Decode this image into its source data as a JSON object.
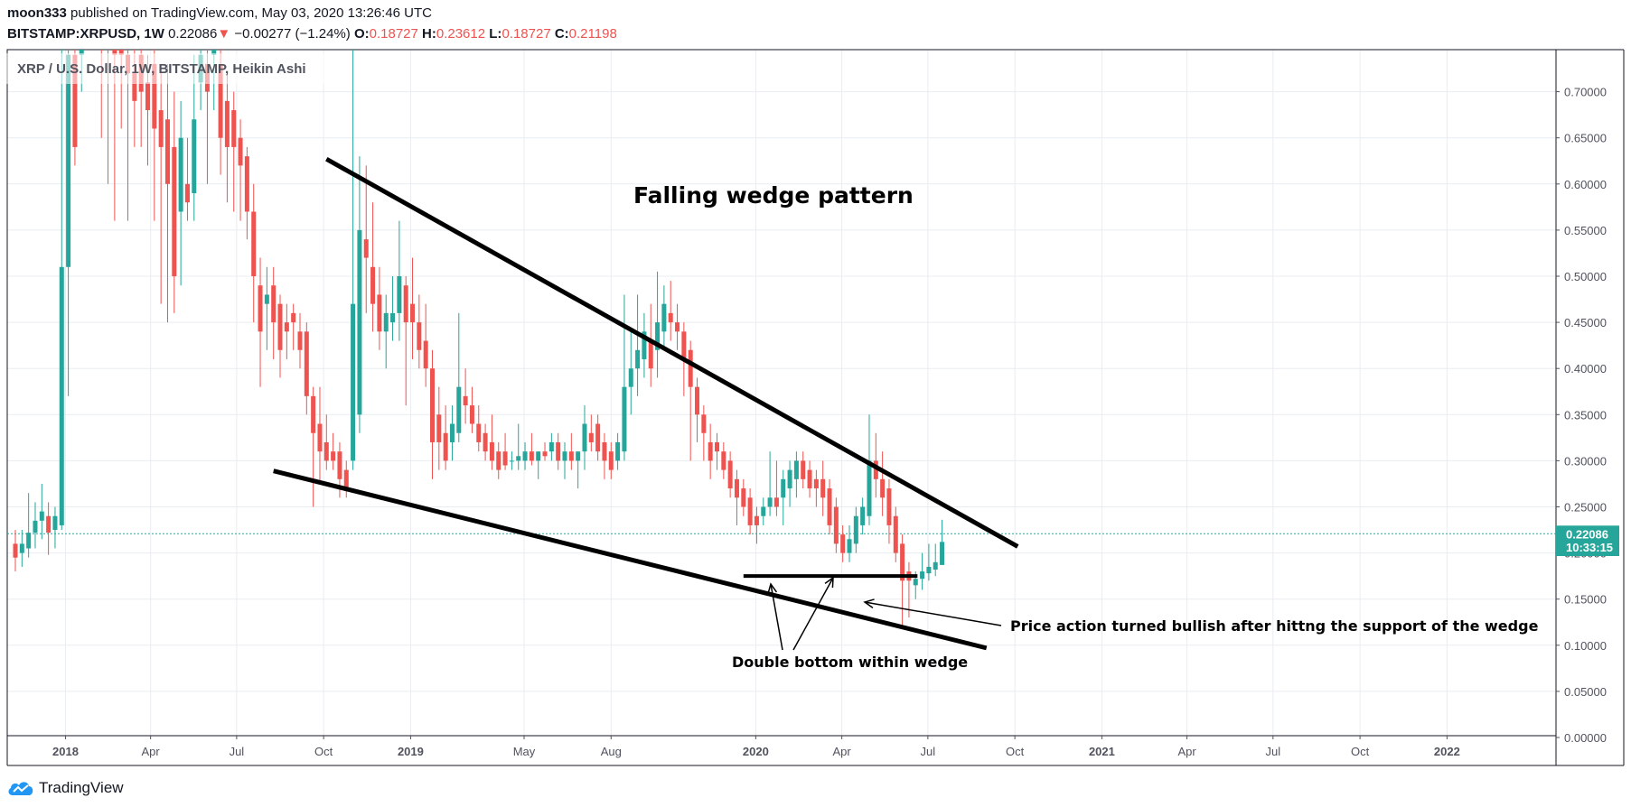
{
  "header": {
    "publisher_user": "moon333",
    "publisher_text": "published on TradingView.com, May 03, 2020 13:26:46 UTC",
    "symbol": "BITSTAMP:XRPUSD, 1W",
    "last": "0.22086",
    "change_arrow": "▼",
    "change": "−0.00277 (−1.24%)",
    "o_label": "O:",
    "o_value": "0.18727",
    "h_label": "H:",
    "h_value": "0.23612",
    "l_label": "L:",
    "l_value": "0.18727",
    "c_label": "C:",
    "c_value": "0.21198"
  },
  "legend_title": "XRP / U.S. Dollar, 1W, BITSTAMP, Heikin Ashi",
  "footer": {
    "brand": "TradingView",
    "brand_icon": "tradingview-cloud-icon"
  },
  "colors": {
    "up": "#26a69a",
    "down": "#ef5350",
    "grid": "#e8edf2",
    "text": "#131722",
    "axis_text": "#50535e",
    "line": "#000000"
  },
  "price_label": "0.22086",
  "countdown_label": "10:33:15",
  "chart_data": {
    "type": "candlestick",
    "title": "XRP / U.S. Dollar, 1W, BITSTAMP, Heikin Ashi",
    "ylim": [
      0,
      0.73
    ],
    "yticks": [
      "0.00000",
      "0.05000",
      "0.10000",
      "0.15000",
      "0.20000",
      "0.25000",
      "0.30000",
      "0.35000",
      "0.40000",
      "0.45000",
      "0.50000",
      "0.55000",
      "0.60000",
      "0.65000",
      "0.70000"
    ],
    "xticks": [
      {
        "label": "2018",
        "date": "2018-01-01",
        "bold": true
      },
      {
        "label": "Apr",
        "date": "2018-04-01"
      },
      {
        "label": "Jul",
        "date": "2018-07-01"
      },
      {
        "label": "Oct",
        "date": "2018-10-01"
      },
      {
        "label": "2019",
        "date": "2019-01-01",
        "bold": true
      },
      {
        "label": "May",
        "date": "2019-05-01"
      },
      {
        "label": "Aug",
        "date": "2019-08-01"
      },
      {
        "label": "2020",
        "date": "2020-01-01",
        "bold": true
      },
      {
        "label": "Apr",
        "date": "2020-04-01"
      },
      {
        "label": "Jul",
        "date": "2020-07-01"
      },
      {
        "label": "Oct",
        "date": "2020-10-01"
      },
      {
        "label": "2021",
        "date": "2021-01-01",
        "bold": true
      },
      {
        "label": "Apr",
        "date": "2021-04-01"
      },
      {
        "label": "Jul",
        "date": "2021-07-01"
      },
      {
        "label": "Oct",
        "date": "2021-10-01"
      },
      {
        "label": "2022",
        "date": "2022-01-01",
        "bold": true
      }
    ],
    "x_range": [
      "2017-11-09",
      "2022-03-20"
    ],
    "last_price": 0.22086,
    "candles": [
      {
        "d": "2017-11-09",
        "o": 0.21,
        "h": 0.225,
        "l": 0.18,
        "c": 0.195
      },
      {
        "d": "2017-11-16",
        "o": 0.2,
        "h": 0.225,
        "l": 0.185,
        "c": 0.21
      },
      {
        "d": "2017-11-23",
        "o": 0.205,
        "h": 0.265,
        "l": 0.195,
        "c": 0.222
      },
      {
        "d": "2017-11-30",
        "o": 0.222,
        "h": 0.255,
        "l": 0.205,
        "c": 0.235
      },
      {
        "d": "2017-12-07",
        "o": 0.235,
        "h": 0.275,
        "l": 0.215,
        "c": 0.245
      },
      {
        "d": "2017-12-14",
        "o": 0.24,
        "h": 0.255,
        "l": 0.198,
        "c": 0.222
      },
      {
        "d": "2017-12-21",
        "o": 0.225,
        "h": 0.25,
        "l": 0.205,
        "c": 0.24
      },
      {
        "d": "2017-12-28",
        "o": 0.23,
        "h": 0.76,
        "l": 0.225,
        "c": 0.51
      },
      {
        "d": "2018-01-04",
        "o": 0.51,
        "h": 0.76,
        "l": 0.37,
        "c": 0.74
      },
      {
        "d": "2018-01-11",
        "o": 0.74,
        "h": 0.8,
        "l": 0.62,
        "c": 0.64
      },
      {
        "d": "2018-01-18",
        "o": 0.74,
        "h": 0.78,
        "l": 0.7,
        "c": 0.76
      },
      {
        "d": "2018-02-08",
        "o": 0.78,
        "h": 0.8,
        "l": 0.65,
        "c": 0.76
      },
      {
        "d": "2018-02-15",
        "o": 0.77,
        "h": 0.8,
        "l": 0.6,
        "c": 0.76
      },
      {
        "d": "2018-02-22",
        "o": 0.76,
        "h": 0.79,
        "l": 0.56,
        "c": 0.74
      },
      {
        "d": "2018-03-01",
        "o": 0.76,
        "h": 0.78,
        "l": 0.66,
        "c": 0.74
      },
      {
        "d": "2018-03-08",
        "o": 0.74,
        "h": 0.77,
        "l": 0.56,
        "c": 0.72
      },
      {
        "d": "2018-03-15",
        "o": 0.72,
        "h": 0.76,
        "l": 0.64,
        "c": 0.69
      },
      {
        "d": "2018-03-22",
        "o": 0.74,
        "h": 0.76,
        "l": 0.64,
        "c": 0.7
      },
      {
        "d": "2018-03-29",
        "o": 0.71,
        "h": 0.74,
        "l": 0.62,
        "c": 0.68
      },
      {
        "d": "2018-04-05",
        "o": 0.73,
        "h": 0.76,
        "l": 0.56,
        "c": 0.66
      },
      {
        "d": "2018-04-12",
        "o": 0.68,
        "h": 0.72,
        "l": 0.47,
        "c": 0.64
      },
      {
        "d": "2018-04-19",
        "o": 0.67,
        "h": 0.73,
        "l": 0.45,
        "c": 0.6
      },
      {
        "d": "2018-04-26",
        "o": 0.64,
        "h": 0.7,
        "l": 0.46,
        "c": 0.5
      },
      {
        "d": "2018-05-03",
        "o": 0.57,
        "h": 0.69,
        "l": 0.49,
        "c": 0.65
      },
      {
        "d": "2018-05-10",
        "o": 0.6,
        "h": 0.65,
        "l": 0.56,
        "c": 0.58
      },
      {
        "d": "2018-05-17",
        "o": 0.59,
        "h": 0.74,
        "l": 0.56,
        "c": 0.67
      },
      {
        "d": "2018-05-24",
        "o": 0.71,
        "h": 0.76,
        "l": 0.68,
        "c": 0.74
      },
      {
        "d": "2018-05-31",
        "o": 0.73,
        "h": 0.76,
        "l": 0.6,
        "c": 0.7
      },
      {
        "d": "2018-06-07",
        "o": 0.74,
        "h": 0.77,
        "l": 0.68,
        "c": 0.75
      },
      {
        "d": "2018-06-14",
        "o": 0.73,
        "h": 0.76,
        "l": 0.61,
        "c": 0.65
      },
      {
        "d": "2018-06-21",
        "o": 0.69,
        "h": 0.72,
        "l": 0.58,
        "c": 0.64
      },
      {
        "d": "2018-06-28",
        "o": 0.68,
        "h": 0.7,
        "l": 0.57,
        "c": 0.64
      },
      {
        "d": "2018-07-05",
        "o": 0.65,
        "h": 0.67,
        "l": 0.56,
        "c": 0.62
      },
      {
        "d": "2018-07-12",
        "o": 0.63,
        "h": 0.64,
        "l": 0.54,
        "c": 0.57
      },
      {
        "d": "2018-07-19",
        "o": 0.57,
        "h": 0.6,
        "l": 0.45,
        "c": 0.5
      },
      {
        "d": "2018-07-26",
        "o": 0.49,
        "h": 0.52,
        "l": 0.38,
        "c": 0.44
      },
      {
        "d": "2018-08-02",
        "o": 0.47,
        "h": 0.51,
        "l": 0.42,
        "c": 0.48
      },
      {
        "d": "2018-08-09",
        "o": 0.49,
        "h": 0.51,
        "l": 0.41,
        "c": 0.45
      },
      {
        "d": "2018-08-16",
        "o": 0.47,
        "h": 0.48,
        "l": 0.39,
        "c": 0.42
      },
      {
        "d": "2018-08-23",
        "o": 0.45,
        "h": 0.47,
        "l": 0.41,
        "c": 0.44
      },
      {
        "d": "2018-08-30",
        "o": 0.46,
        "h": 0.47,
        "l": 0.42,
        "c": 0.45
      },
      {
        "d": "2018-09-06",
        "o": 0.44,
        "h": 0.46,
        "l": 0.4,
        "c": 0.42
      },
      {
        "d": "2018-09-13",
        "o": 0.44,
        "h": 0.45,
        "l": 0.35,
        "c": 0.37
      },
      {
        "d": "2018-09-20",
        "o": 0.37,
        "h": 0.38,
        "l": 0.25,
        "c": 0.33
      },
      {
        "d": "2018-09-27",
        "o": 0.34,
        "h": 0.38,
        "l": 0.275,
        "c": 0.31
      },
      {
        "d": "2018-10-04",
        "o": 0.32,
        "h": 0.35,
        "l": 0.29,
        "c": 0.3
      },
      {
        "d": "2018-10-11",
        "o": 0.31,
        "h": 0.33,
        "l": 0.29,
        "c": 0.3
      },
      {
        "d": "2018-10-18",
        "o": 0.31,
        "h": 0.32,
        "l": 0.26,
        "c": 0.28
      },
      {
        "d": "2018-10-25",
        "o": 0.29,
        "h": 0.3,
        "l": 0.26,
        "c": 0.27
      },
      {
        "d": "2018-11-01",
        "o": 0.3,
        "h": 0.78,
        "l": 0.29,
        "c": 0.47
      },
      {
        "d": "2018-11-08",
        "o": 0.35,
        "h": 0.63,
        "l": 0.33,
        "c": 0.55
      },
      {
        "d": "2018-11-15",
        "o": 0.54,
        "h": 0.62,
        "l": 0.46,
        "c": 0.52
      },
      {
        "d": "2018-11-22",
        "o": 0.51,
        "h": 0.58,
        "l": 0.44,
        "c": 0.47
      },
      {
        "d": "2018-11-29",
        "o": 0.48,
        "h": 0.51,
        "l": 0.42,
        "c": 0.44
      },
      {
        "d": "2018-12-06",
        "o": 0.44,
        "h": 0.48,
        "l": 0.4,
        "c": 0.46
      },
      {
        "d": "2018-12-13",
        "o": 0.45,
        "h": 0.5,
        "l": 0.43,
        "c": 0.46
      },
      {
        "d": "2018-12-20",
        "o": 0.46,
        "h": 0.56,
        "l": 0.43,
        "c": 0.5
      },
      {
        "d": "2018-12-27",
        "o": 0.49,
        "h": 0.5,
        "l": 0.36,
        "c": 0.45
      },
      {
        "d": "2019-01-03",
        "o": 0.47,
        "h": 0.52,
        "l": 0.41,
        "c": 0.45
      },
      {
        "d": "2019-01-10",
        "o": 0.45,
        "h": 0.48,
        "l": 0.4,
        "c": 0.42
      },
      {
        "d": "2019-01-17",
        "o": 0.43,
        "h": 0.47,
        "l": 0.38,
        "c": 0.4
      },
      {
        "d": "2019-01-24",
        "o": 0.4,
        "h": 0.42,
        "l": 0.28,
        "c": 0.32
      },
      {
        "d": "2019-01-31",
        "o": 0.35,
        "h": 0.38,
        "l": 0.29,
        "c": 0.32
      },
      {
        "d": "2019-02-07",
        "o": 0.33,
        "h": 0.36,
        "l": 0.29,
        "c": 0.3
      },
      {
        "d": "2019-02-14",
        "o": 0.32,
        "h": 0.36,
        "l": 0.3,
        "c": 0.34
      },
      {
        "d": "2019-02-21",
        "o": 0.33,
        "h": 0.46,
        "l": 0.32,
        "c": 0.38
      },
      {
        "d": "2019-02-28",
        "o": 0.37,
        "h": 0.4,
        "l": 0.34,
        "c": 0.36
      },
      {
        "d": "2019-03-07",
        "o": 0.36,
        "h": 0.38,
        "l": 0.33,
        "c": 0.34
      },
      {
        "d": "2019-03-14",
        "o": 0.34,
        "h": 0.36,
        "l": 0.31,
        "c": 0.32
      },
      {
        "d": "2019-03-21",
        "o": 0.33,
        "h": 0.34,
        "l": 0.3,
        "c": 0.31
      },
      {
        "d": "2019-03-28",
        "o": 0.32,
        "h": 0.35,
        "l": 0.29,
        "c": 0.3
      },
      {
        "d": "2019-04-04",
        "o": 0.31,
        "h": 0.32,
        "l": 0.28,
        "c": 0.29
      },
      {
        "d": "2019-04-11",
        "o": 0.31,
        "h": 0.33,
        "l": 0.29,
        "c": 0.295
      },
      {
        "d": "2019-04-18",
        "o": 0.3,
        "h": 0.31,
        "l": 0.29,
        "c": 0.3
      },
      {
        "d": "2019-04-25",
        "o": 0.3,
        "h": 0.34,
        "l": 0.29,
        "c": 0.305
      },
      {
        "d": "2019-05-02",
        "o": 0.3,
        "h": 0.32,
        "l": 0.29,
        "c": 0.31
      },
      {
        "d": "2019-05-09",
        "o": 0.31,
        "h": 0.33,
        "l": 0.295,
        "c": 0.3
      },
      {
        "d": "2019-05-16",
        "o": 0.3,
        "h": 0.31,
        "l": 0.28,
        "c": 0.31
      },
      {
        "d": "2019-05-23",
        "o": 0.31,
        "h": 0.32,
        "l": 0.3,
        "c": 0.305
      },
      {
        "d": "2019-05-30",
        "o": 0.31,
        "h": 0.33,
        "l": 0.3,
        "c": 0.32
      },
      {
        "d": "2019-06-06",
        "o": 0.32,
        "h": 0.33,
        "l": 0.29,
        "c": 0.3
      },
      {
        "d": "2019-06-13",
        "o": 0.3,
        "h": 0.32,
        "l": 0.28,
        "c": 0.31
      },
      {
        "d": "2019-06-20",
        "o": 0.31,
        "h": 0.33,
        "l": 0.29,
        "c": 0.3
      },
      {
        "d": "2019-06-27",
        "o": 0.3,
        "h": 0.31,
        "l": 0.27,
        "c": 0.31
      },
      {
        "d": "2019-07-04",
        "o": 0.31,
        "h": 0.36,
        "l": 0.29,
        "c": 0.34
      },
      {
        "d": "2019-07-11",
        "o": 0.33,
        "h": 0.35,
        "l": 0.31,
        "c": 0.32
      },
      {
        "d": "2019-07-18",
        "o": 0.34,
        "h": 0.35,
        "l": 0.3,
        "c": 0.31
      },
      {
        "d": "2019-07-25",
        "o": 0.32,
        "h": 0.33,
        "l": 0.28,
        "c": 0.3
      },
      {
        "d": "2019-08-01",
        "o": 0.31,
        "h": 0.32,
        "l": 0.28,
        "c": 0.29
      },
      {
        "d": "2019-08-08",
        "o": 0.3,
        "h": 0.33,
        "l": 0.29,
        "c": 0.32
      },
      {
        "d": "2019-08-15",
        "o": 0.31,
        "h": 0.48,
        "l": 0.3,
        "c": 0.38
      },
      {
        "d": "2019-08-22",
        "o": 0.38,
        "h": 0.44,
        "l": 0.35,
        "c": 0.4
      },
      {
        "d": "2019-08-29",
        "o": 0.4,
        "h": 0.48,
        "l": 0.37,
        "c": 0.42
      },
      {
        "d": "2019-09-05",
        "o": 0.41,
        "h": 0.46,
        "l": 0.39,
        "c": 0.44
      },
      {
        "d": "2019-09-12",
        "o": 0.43,
        "h": 0.47,
        "l": 0.38,
        "c": 0.4
      },
      {
        "d": "2019-09-19",
        "o": 0.42,
        "h": 0.505,
        "l": 0.39,
        "c": 0.45
      },
      {
        "d": "2019-09-26",
        "o": 0.44,
        "h": 0.49,
        "l": 0.42,
        "c": 0.47
      },
      {
        "d": "2019-10-03",
        "o": 0.46,
        "h": 0.495,
        "l": 0.43,
        "c": 0.45
      },
      {
        "d": "2019-10-10",
        "o": 0.45,
        "h": 0.47,
        "l": 0.42,
        "c": 0.44
      },
      {
        "d": "2019-10-17",
        "o": 0.44,
        "h": 0.45,
        "l": 0.37,
        "c": 0.41
      },
      {
        "d": "2019-10-24",
        "o": 0.42,
        "h": 0.43,
        "l": 0.3,
        "c": 0.38
      },
      {
        "d": "2019-10-31",
        "o": 0.38,
        "h": 0.39,
        "l": 0.32,
        "c": 0.35
      },
      {
        "d": "2019-11-07",
        "o": 0.35,
        "h": 0.36,
        "l": 0.3,
        "c": 0.33
      },
      {
        "d": "2019-11-14",
        "o": 0.32,
        "h": 0.34,
        "l": 0.28,
        "c": 0.3
      },
      {
        "d": "2019-11-21",
        "o": 0.32,
        "h": 0.33,
        "l": 0.29,
        "c": 0.31
      },
      {
        "d": "2019-11-28",
        "o": 0.31,
        "h": 0.32,
        "l": 0.28,
        "c": 0.29
      },
      {
        "d": "2019-12-05",
        "o": 0.3,
        "h": 0.31,
        "l": 0.26,
        "c": 0.27
      },
      {
        "d": "2019-12-12",
        "o": 0.28,
        "h": 0.29,
        "l": 0.23,
        "c": 0.26
      },
      {
        "d": "2019-12-19",
        "o": 0.27,
        "h": 0.28,
        "l": 0.24,
        "c": 0.25
      },
      {
        "d": "2019-12-26",
        "o": 0.26,
        "h": 0.27,
        "l": 0.22,
        "c": 0.23
      },
      {
        "d": "2020-01-02",
        "o": 0.24,
        "h": 0.25,
        "l": 0.21,
        "c": 0.23
      },
      {
        "d": "2020-01-09",
        "o": 0.24,
        "h": 0.26,
        "l": 0.23,
        "c": 0.25
      },
      {
        "d": "2020-01-16",
        "o": 0.25,
        "h": 0.31,
        "l": 0.24,
        "c": 0.26
      },
      {
        "d": "2020-01-23",
        "o": 0.26,
        "h": 0.3,
        "l": 0.24,
        "c": 0.25
      },
      {
        "d": "2020-01-30",
        "o": 0.26,
        "h": 0.29,
        "l": 0.23,
        "c": 0.28
      },
      {
        "d": "2020-02-06",
        "o": 0.27,
        "h": 0.3,
        "l": 0.25,
        "c": 0.29
      },
      {
        "d": "2020-02-13",
        "o": 0.28,
        "h": 0.31,
        "l": 0.26,
        "c": 0.3
      },
      {
        "d": "2020-02-20",
        "o": 0.3,
        "h": 0.31,
        "l": 0.27,
        "c": 0.28
      },
      {
        "d": "2020-02-27",
        "o": 0.29,
        "h": 0.3,
        "l": 0.26,
        "c": 0.27
      },
      {
        "d": "2020-03-05",
        "o": 0.28,
        "h": 0.29,
        "l": 0.25,
        "c": 0.27
      },
      {
        "d": "2020-03-12",
        "o": 0.28,
        "h": 0.3,
        "l": 0.24,
        "c": 0.26
      },
      {
        "d": "2020-03-19",
        "o": 0.27,
        "h": 0.28,
        "l": 0.22,
        "c": 0.23
      },
      {
        "d": "2020-03-26",
        "o": 0.25,
        "h": 0.26,
        "l": 0.2,
        "c": 0.21
      },
      {
        "d": "2020-04-02",
        "o": 0.22,
        "h": 0.23,
        "l": 0.19,
        "c": 0.2
      },
      {
        "d": "2020-04-09",
        "o": 0.2,
        "h": 0.23,
        "l": 0.19,
        "c": 0.215
      },
      {
        "d": "2020-04-16",
        "o": 0.21,
        "h": 0.25,
        "l": 0.2,
        "c": 0.24
      },
      {
        "d": "2020-04-23",
        "o": 0.23,
        "h": 0.26,
        "l": 0.22,
        "c": 0.25
      },
      {
        "d": "2020-04-30",
        "o": 0.24,
        "h": 0.35,
        "l": 0.23,
        "c": 0.3
      },
      {
        "d": "2020-05-07",
        "o": 0.3,
        "h": 0.33,
        "l": 0.26,
        "c": 0.28
      },
      {
        "d": "2020-05-14",
        "o": 0.28,
        "h": 0.31,
        "l": 0.24,
        "c": 0.26
      },
      {
        "d": "2020-05-21",
        "o": 0.27,
        "h": 0.28,
        "l": 0.21,
        "c": 0.23
      },
      {
        "d": "2020-05-28",
        "o": 0.24,
        "h": 0.25,
        "l": 0.19,
        "c": 0.2
      },
      {
        "d": "2020-06-04",
        "o": 0.21,
        "h": 0.22,
        "l": 0.12,
        "c": 0.17
      },
      {
        "d": "2020-06-11",
        "o": 0.18,
        "h": 0.19,
        "l": 0.13,
        "c": 0.17
      },
      {
        "d": "2020-06-18",
        "o": 0.165,
        "h": 0.18,
        "l": 0.15,
        "c": 0.172
      },
      {
        "d": "2020-06-25",
        "o": 0.172,
        "h": 0.2,
        "l": 0.16,
        "c": 0.18
      },
      {
        "d": "2020-07-02",
        "o": 0.178,
        "h": 0.21,
        "l": 0.17,
        "c": 0.185
      },
      {
        "d": "2020-07-09",
        "o": 0.182,
        "h": 0.21,
        "l": 0.175,
        "c": 0.19
      },
      {
        "d": "2020-07-16",
        "o": 0.187,
        "h": 0.236,
        "l": 0.187,
        "c": 0.212
      }
    ]
  },
  "annotations": {
    "title": "Falling wedge pattern",
    "double_bottom": "Double bottom within wedge",
    "bullish": "Price action turned bullish after hittng the support of the wedge",
    "upper_line": {
      "from": {
        "d": "2018-10-04",
        "y": 0.627
      },
      "to": {
        "d": "2020-10-04",
        "y": 0.207
      }
    },
    "lower_line": {
      "from": {
        "d": "2018-08-09",
        "y": 0.289
      },
      "to": {
        "d": "2020-09-01",
        "y": 0.097
      }
    },
    "support_line": {
      "from": {
        "d": "2019-12-19",
        "y": 0.175
      },
      "to": {
        "d": "2020-06-20",
        "y": 0.175
      }
    }
  }
}
